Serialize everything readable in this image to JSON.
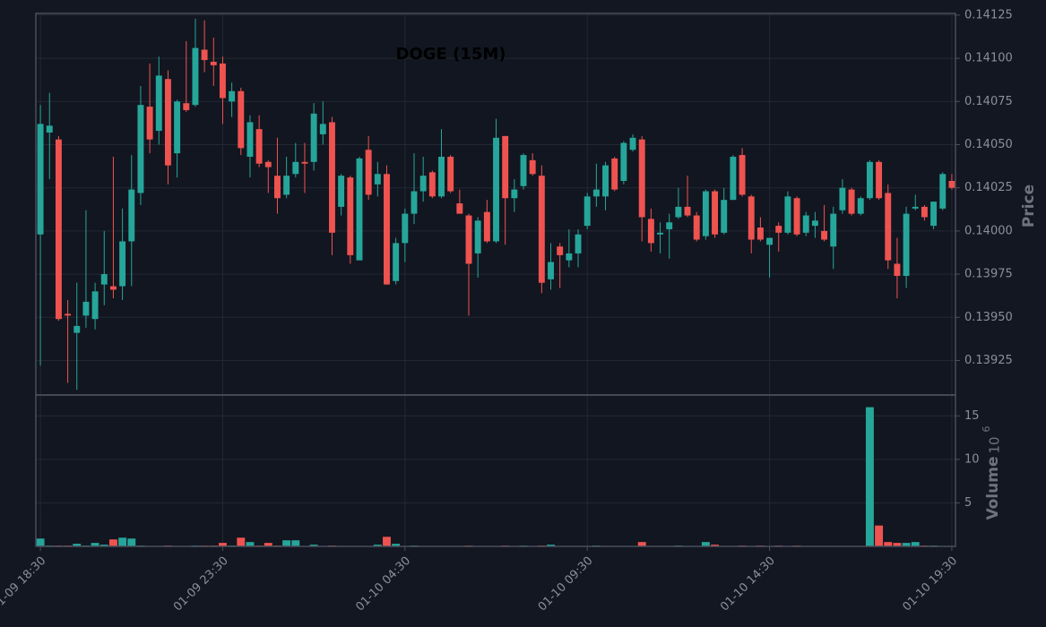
{
  "chart_data": {
    "type": "candlestick",
    "title": "DOGE (15M)",
    "ylabel": "Price",
    "volume_label": "Volume",
    "volume_scale": {
      "base": "10",
      "exponent": "6"
    },
    "up_color": "#26a69a",
    "down_color": "#ef5350",
    "grid": true,
    "xlim": [
      -0.5,
      100.4
    ],
    "xticks": [
      {
        "value": 0,
        "label": "01-09 18:30"
      },
      {
        "value": 20,
        "label": "01-09 23:30"
      },
      {
        "value": 40,
        "label": "01-10 04:30"
      },
      {
        "value": 60,
        "label": "01-10 09:30"
      },
      {
        "value": 80,
        "label": "01-10 14:30"
      },
      {
        "value": 100,
        "label": "01-10 19:30"
      }
    ],
    "ylim": [
      0.13905,
      0.14126
    ],
    "yticks": [
      0.13925,
      {
        "value": 0.1395,
        "label": "0.13950"
      },
      0.13975,
      {
        "value": 0.14,
        "label": "0.14000"
      },
      0.14025,
      {
        "value": 0.1405,
        "label": "0.14050"
      },
      0.14075,
      {
        "value": 0.141,
        "label": "0.14100"
      },
      0.14125
    ],
    "volume_ylim": [
      0,
      17.4
    ],
    "volume_yticks": [
      5,
      10,
      15
    ],
    "open": [
      0.13998,
      0.14057,
      0.14053,
      0.13952,
      0.13941,
      0.13951,
      0.13949,
      0.13969,
      0.13968,
      0.13968,
      0.13994,
      0.14022,
      0.14072,
      0.14058,
      0.14088,
      0.14045,
      0.14074,
      0.14073,
      0.14105,
      0.14098,
      0.14097,
      0.14075,
      0.14081,
      0.14043,
      0.14059,
      0.1404,
      0.14032,
      0.14021,
      0.14033,
      0.1404,
      0.1404,
      0.14056,
      0.14063,
      0.14014,
      0.14031,
      0.13983,
      0.14047,
      0.14027,
      0.14033,
      0.13971,
      0.13993,
      0.1401,
      0.14023,
      0.14034,
      0.1402,
      0.14043,
      0.14016,
      0.14009,
      0.13987,
      0.14011,
      0.13994,
      0.14055,
      0.14019,
      0.14026,
      0.14041,
      0.14032,
      0.13972,
      0.13991,
      0.13983,
      0.13987,
      0.14003,
      0.1402,
      0.1402,
      0.14042,
      0.14029,
      0.14047,
      0.14053,
      0.14007,
      0.13998,
      0.14001,
      0.14008,
      0.14014,
      0.14009,
      0.13997,
      0.14023,
      0.13999,
      0.14018,
      0.14044,
      0.1402,
      0.14002,
      0.13992,
      0.14003,
      0.13999,
      0.14019,
      0.13999,
      0.14003,
      0.14,
      0.13991,
      0.14012,
      0.14024,
      0.1401,
      0.14019,
      0.1404,
      0.14022,
      0.13981,
      0.13974,
      0.14013,
      0.14014,
      0.14003,
      0.14013,
      0.14029
    ],
    "high": [
      0.14073,
      0.1408,
      0.14055,
      0.1396,
      0.1397,
      0.14012,
      0.1397,
      0.14,
      0.14043,
      0.14013,
      0.14044,
      0.14084,
      0.14097,
      0.14101,
      0.14093,
      0.14076,
      0.1411,
      0.14123,
      0.14122,
      0.14112,
      0.14101,
      0.14086,
      0.14083,
      0.14067,
      0.14067,
      0.14041,
      0.14054,
      0.14043,
      0.14051,
      0.14051,
      0.14074,
      0.14075,
      0.14066,
      0.14033,
      0.14032,
      0.14043,
      0.14055,
      0.1404,
      0.14038,
      0.13996,
      0.14013,
      0.14045,
      0.14043,
      0.14035,
      0.14059,
      0.14044,
      0.14024,
      0.1401,
      0.14008,
      0.14018,
      0.14065,
      0.14055,
      0.1403,
      0.14045,
      0.14045,
      0.14038,
      0.13993,
      0.13993,
      0.14001,
      0.14001,
      0.14022,
      0.14039,
      0.1404,
      0.14043,
      0.14052,
      0.14056,
      0.14055,
      0.14013,
      0.14005,
      0.1401,
      0.14025,
      0.14032,
      0.14011,
      0.14024,
      0.14024,
      0.14025,
      0.14044,
      0.14048,
      0.14021,
      0.14008,
      0.13996,
      0.14005,
      0.14023,
      0.1402,
      0.14011,
      0.14011,
      0.14015,
      0.14014,
      0.1403,
      0.14025,
      0.1402,
      0.14041,
      0.14041,
      0.14027,
      0.13996,
      0.14014,
      0.14021,
      0.14015,
      0.14017,
      0.14034,
      0.14033
    ],
    "low": [
      0.13922,
      0.1403,
      0.13948,
      0.13912,
      0.13908,
      0.13944,
      0.13943,
      0.13957,
      0.13961,
      0.1396,
      0.13968,
      0.14015,
      0.14045,
      0.1405,
      0.14027,
      0.14031,
      0.14069,
      0.14072,
      0.14092,
      0.14084,
      0.14062,
      0.14066,
      0.14044,
      0.14031,
      0.14037,
      0.14022,
      0.1401,
      0.14019,
      0.14031,
      0.14022,
      0.14035,
      0.1405,
      0.13986,
      0.14009,
      0.13981,
      0.13983,
      0.14018,
      0.1402,
      0.13969,
      0.13969,
      0.13982,
      0.14004,
      0.14017,
      0.14019,
      0.14019,
      0.14022,
      0.1401,
      0.13951,
      0.13973,
      0.13993,
      0.13993,
      0.13992,
      0.14011,
      0.14024,
      0.14032,
      0.13964,
      0.13966,
      0.13967,
      0.13979,
      0.13979,
      0.14001,
      0.14014,
      0.14012,
      0.14023,
      0.14027,
      0.14046,
      0.13994,
      0.13988,
      0.13987,
      0.13984,
      0.14007,
      0.14008,
      0.13994,
      0.13995,
      0.13996,
      0.13998,
      0.14018,
      0.1402,
      0.13987,
      0.13994,
      0.13973,
      0.13988,
      0.13998,
      0.13997,
      0.13997,
      0.13996,
      0.13994,
      0.13978,
      0.1401,
      0.14009,
      0.14009,
      0.14018,
      0.14018,
      0.13978,
      0.13961,
      0.13967,
      0.14012,
      0.14006,
      0.14001,
      0.14012,
      0.14024
    ],
    "close": [
      0.14062,
      0.14061,
      0.13949,
      0.13951,
      0.13945,
      0.13959,
      0.13965,
      0.13975,
      0.13966,
      0.13994,
      0.14024,
      0.14073,
      0.14053,
      0.1409,
      0.14038,
      0.14075,
      0.1407,
      0.14106,
      0.14099,
      0.14096,
      0.14077,
      0.14081,
      0.14048,
      0.14063,
      0.14039,
      0.14037,
      0.14019,
      0.14032,
      0.1404,
      0.14039,
      0.14068,
      0.14062,
      0.13999,
      0.14032,
      0.13986,
      0.14042,
      0.14021,
      0.14033,
      0.13969,
      0.13993,
      0.1401,
      0.14023,
      0.14032,
      0.1402,
      0.14043,
      0.14023,
      0.1401,
      0.13981,
      0.14006,
      0.13994,
      0.14054,
      0.14019,
      0.14024,
      0.14044,
      0.14033,
      0.1397,
      0.13982,
      0.13986,
      0.13987,
      0.13998,
      0.1402,
      0.14024,
      0.14038,
      0.14024,
      0.14051,
      0.14054,
      0.14008,
      0.13993,
      0.13999,
      0.14005,
      0.14014,
      0.14009,
      0.13995,
      0.14023,
      0.13998,
      0.14018,
      0.14043,
      0.14021,
      0.13995,
      0.13995,
      0.13996,
      0.13999,
      0.1402,
      0.13998,
      0.14009,
      0.14006,
      0.13995,
      0.1401,
      0.14025,
      0.1401,
      0.14019,
      0.1404,
      0.14019,
      0.13983,
      0.13974,
      0.1401,
      0.14014,
      0.14008,
      0.14017,
      0.14033,
      0.14025
    ],
    "volume": [
      0.9,
      0.1,
      0.1,
      0.1,
      0.3,
      0.1,
      0.4,
      0.2,
      0.8,
      1.0,
      0.9,
      0.1,
      0.05,
      0.05,
      0.1,
      0.05,
      0.05,
      0.1,
      0.1,
      0.1,
      0.4,
      0.1,
      1.0,
      0.5,
      0.1,
      0.4,
      0.1,
      0.7,
      0.7,
      0.05,
      0.2,
      0.05,
      0.1,
      0.05,
      0.05,
      0.05,
      0.05,
      0.2,
      1.1,
      0.3,
      0.05,
      0.1,
      0.05,
      0.05,
      0.05,
      0.05,
      0.05,
      0.1,
      0.05,
      0.05,
      0.05,
      0.1,
      0.05,
      0.1,
      0.05,
      0.1,
      0.2,
      0.05,
      0.05,
      0.05,
      0.05,
      0.1,
      0.05,
      0.05,
      0.05,
      0.05,
      0.5,
      0.05,
      0.05,
      0.05,
      0.1,
      0.05,
      0.05,
      0.5,
      0.2,
      0.05,
      0.05,
      0.1,
      0.05,
      0.1,
      0.05,
      0.1,
      0.05,
      0.1,
      0.05,
      0.05,
      0.05,
      0.05,
      0.05,
      0.05,
      0.05,
      16.0,
      2.4,
      0.5,
      0.4,
      0.4,
      0.5,
      0.1,
      0.1,
      0.05,
      0.05
    ]
  }
}
